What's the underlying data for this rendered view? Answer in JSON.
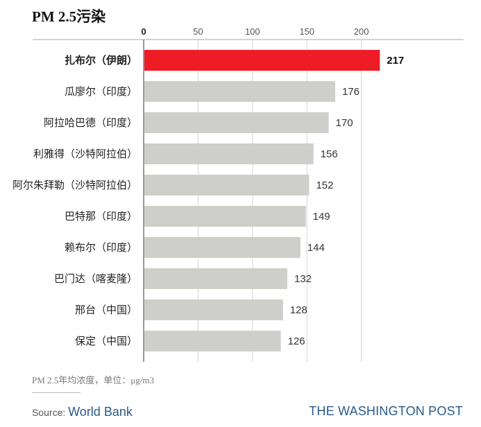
{
  "chart_data": {
    "type": "bar",
    "orientation": "horizontal",
    "title": "PM 2.5污染",
    "categories": [
      "扎布尔（伊朗）",
      "瓜廖尔（印度）",
      "阿拉哈巴德（印度）",
      "利雅得（沙特阿拉伯）",
      "阿尔朱拜勒（沙特阿拉伯）",
      "巴特那（印度）",
      "赖布尔（印度）",
      "巴门达（喀麦隆）",
      "邢台（中国）",
      "保定（中国）"
    ],
    "values": [
      217,
      176,
      170,
      156,
      152,
      149,
      144,
      132,
      128,
      126
    ],
    "highlight_index": 0,
    "xticks": [
      0,
      50,
      100,
      150,
      200
    ],
    "xlim": [
      0,
      240
    ],
    "xaxis_position": "top",
    "grid": true,
    "colors": {
      "highlight": "#ee1c25",
      "default": "#cececa",
      "grid": "#d4d4d4",
      "axis": "#333333"
    }
  },
  "footer": {
    "note": "PM 2.5年均浓度，单位：μg/m3",
    "source_label": "Source:",
    "source_name": "World Bank",
    "brand": "THE WASHINGTON POST"
  }
}
